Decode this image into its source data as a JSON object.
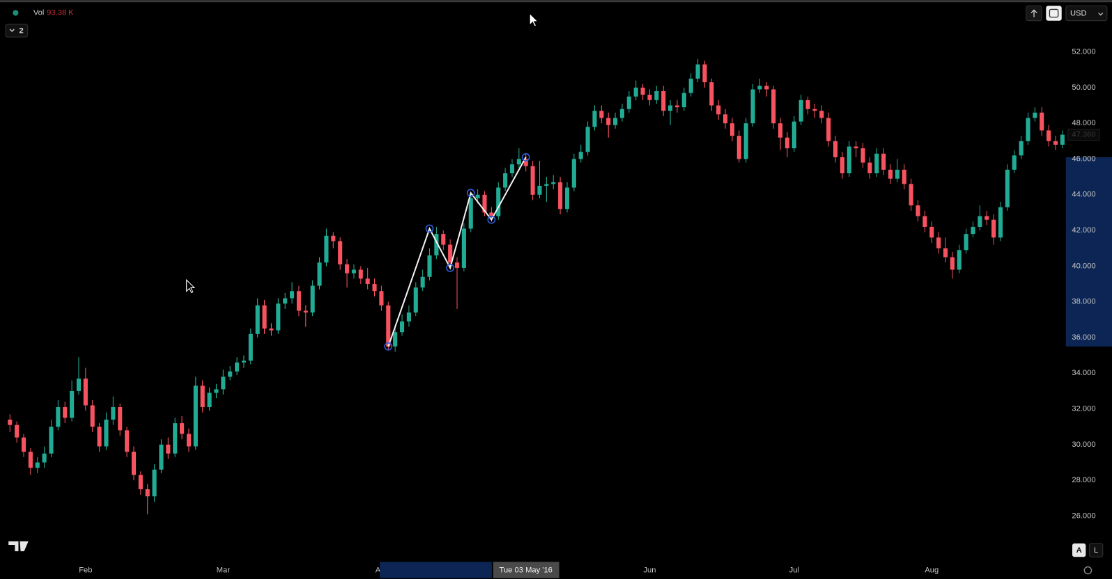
{
  "chart_data": {
    "type": "candlestick",
    "categories": [
      null,
      null,
      null,
      null,
      null,
      null,
      null,
      null,
      null,
      null,
      null,
      "Feb",
      null,
      null,
      null,
      null,
      null,
      null,
      null,
      null,
      null,
      null,
      null,
      null,
      null,
      null,
      null,
      null,
      null,
      null,
      null,
      "Mar",
      null,
      null,
      null,
      null,
      null,
      null,
      null,
      null,
      null,
      null,
      null,
      null,
      null,
      null,
      null,
      null,
      null,
      null,
      null,
      null,
      null,
      null,
      "Apr",
      null,
      null,
      null,
      null,
      null,
      null,
      null,
      null,
      null,
      null,
      null,
      null,
      null,
      null,
      null,
      null,
      null,
      null,
      null,
      null,
      null,
      null,
      null,
      null,
      null,
      null,
      null,
      null,
      null,
      null,
      null,
      null,
      null,
      null,
      null,
      null,
      null,
      null,
      "Jun",
      null,
      null,
      null,
      null,
      null,
      null,
      null,
      null,
      null,
      null,
      null,
      null,
      null,
      null,
      null,
      null,
      null,
      null,
      null,
      null,
      "Jul",
      null,
      null,
      null,
      null,
      null,
      null,
      null,
      null,
      null,
      null,
      null,
      null,
      null,
      null,
      null,
      null,
      null,
      null,
      null,
      "Aug",
      null,
      null,
      null,
      null,
      null,
      null,
      null,
      null,
      null,
      null,
      null,
      null,
      null,
      null,
      null,
      null,
      null
    ],
    "ohlc": [
      [
        31.4,
        31.7,
        30.7,
        31.1
      ],
      [
        31.1,
        31.3,
        30.1,
        30.4
      ],
      [
        30.4,
        30.6,
        29.3,
        29.6
      ],
      [
        29.6,
        29.8,
        28.3,
        28.7
      ],
      [
        28.7,
        29.3,
        28.4,
        29.0
      ],
      [
        29.0,
        29.9,
        28.7,
        29.5
      ],
      [
        29.5,
        31.4,
        29.3,
        31.0
      ],
      [
        31.0,
        32.5,
        30.8,
        32.1
      ],
      [
        32.1,
        32.4,
        31.2,
        31.5
      ],
      [
        31.5,
        33.6,
        31.3,
        33.0
      ],
      [
        33.0,
        34.9,
        32.8,
        33.7
      ],
      [
        33.7,
        34.3,
        31.9,
        32.2
      ],
      [
        32.2,
        32.5,
        30.7,
        31.0
      ],
      [
        31.0,
        31.2,
        29.6,
        29.9
      ],
      [
        29.9,
        31.8,
        29.7,
        31.4
      ],
      [
        31.4,
        32.7,
        31.1,
        32.1
      ],
      [
        32.1,
        32.3,
        30.5,
        30.8
      ],
      [
        30.8,
        31.0,
        29.3,
        29.6
      ],
      [
        29.6,
        29.9,
        28.0,
        28.3
      ],
      [
        28.3,
        28.5,
        27.2,
        27.5
      ],
      [
        27.5,
        27.8,
        26.1,
        27.1
      ],
      [
        27.1,
        28.9,
        26.8,
        28.6
      ],
      [
        28.6,
        30.3,
        28.4,
        30.0
      ],
      [
        30.0,
        30.4,
        29.2,
        29.5
      ],
      [
        29.5,
        31.5,
        29.3,
        31.2
      ],
      [
        31.2,
        31.6,
        30.3,
        30.6
      ],
      [
        30.6,
        30.9,
        29.6,
        29.9
      ],
      [
        29.9,
        33.8,
        29.7,
        33.3
      ],
      [
        33.3,
        33.6,
        31.8,
        32.1
      ],
      [
        32.1,
        33.2,
        31.9,
        32.9
      ],
      [
        32.9,
        33.4,
        32.6,
        33.1
      ],
      [
        33.1,
        34.2,
        32.8,
        33.8
      ],
      [
        33.8,
        34.4,
        33.6,
        34.1
      ],
      [
        34.1,
        34.9,
        33.9,
        34.6
      ],
      [
        34.6,
        35.0,
        34.3,
        34.7
      ],
      [
        34.7,
        36.5,
        34.5,
        36.2
      ],
      [
        36.2,
        38.2,
        36.0,
        37.8
      ],
      [
        37.8,
        38.1,
        36.2,
        36.5
      ],
      [
        36.5,
        36.8,
        36.1,
        36.4
      ],
      [
        36.4,
        38.2,
        36.2,
        37.9
      ],
      [
        37.9,
        38.5,
        37.6,
        38.2
      ],
      [
        38.2,
        39.1,
        37.9,
        38.6
      ],
      [
        38.6,
        38.9,
        37.2,
        37.5
      ],
      [
        37.5,
        37.8,
        36.6,
        37.4
      ],
      [
        37.4,
        39.2,
        37.2,
        38.9
      ],
      [
        38.9,
        40.5,
        38.7,
        40.2
      ],
      [
        40.2,
        42.1,
        40.0,
        41.7
      ],
      [
        41.7,
        41.9,
        41.0,
        41.4
      ],
      [
        41.4,
        41.6,
        39.8,
        40.1
      ],
      [
        40.1,
        40.4,
        38.8,
        39.6
      ],
      [
        39.6,
        40.1,
        39.3,
        39.8
      ],
      [
        39.8,
        40.0,
        39.0,
        39.3
      ],
      [
        39.3,
        39.9,
        38.7,
        39.0
      ],
      [
        39.0,
        39.3,
        38.3,
        38.6
      ],
      [
        38.6,
        38.9,
        37.5,
        37.8
      ],
      [
        37.8,
        38.0,
        35.3,
        35.5
      ],
      [
        35.5,
        36.6,
        35.2,
        36.3
      ],
      [
        36.3,
        37.3,
        36.1,
        36.9
      ],
      [
        36.9,
        37.8,
        36.6,
        37.4
      ],
      [
        37.4,
        39.1,
        37.2,
        38.8
      ],
      [
        38.8,
        39.8,
        38.6,
        39.4
      ],
      [
        39.4,
        41.0,
        39.2,
        40.6
      ],
      [
        40.6,
        42.2,
        40.4,
        41.8
      ],
      [
        41.8,
        42.0,
        40.9,
        41.2
      ],
      [
        41.2,
        41.5,
        39.9,
        40.2
      ],
      [
        40.2,
        40.5,
        37.6,
        39.9
      ],
      [
        39.9,
        42.4,
        39.7,
        42.1
      ],
      [
        42.1,
        44.1,
        41.9,
        43.8
      ],
      [
        43.8,
        44.3,
        43.5,
        44.0
      ],
      [
        44.0,
        44.2,
        42.8,
        43.0
      ],
      [
        43.0,
        43.3,
        42.5,
        42.8
      ],
      [
        42.8,
        44.7,
        42.6,
        44.4
      ],
      [
        44.4,
        45.5,
        44.2,
        45.2
      ],
      [
        45.2,
        46.0,
        45.0,
        45.7
      ],
      [
        45.7,
        46.6,
        45.5,
        46.0
      ],
      [
        46.0,
        46.3,
        45.3,
        45.6
      ],
      [
        45.6,
        45.9,
        43.7,
        44.0
      ],
      [
        44.0,
        45.9,
        43.8,
        44.5
      ],
      [
        44.5,
        45.0,
        43.6,
        44.6
      ],
      [
        44.6,
        45.1,
        44.3,
        44.7
      ],
      [
        44.7,
        45.0,
        42.9,
        43.2
      ],
      [
        43.2,
        44.7,
        43.0,
        44.4
      ],
      [
        44.4,
        46.3,
        44.2,
        46.0
      ],
      [
        46.0,
        46.8,
        45.8,
        46.4
      ],
      [
        46.4,
        48.1,
        46.2,
        47.8
      ],
      [
        47.8,
        49.0,
        47.6,
        48.7
      ],
      [
        48.7,
        49.0,
        48.0,
        48.3
      ],
      [
        48.3,
        48.6,
        47.2,
        47.9
      ],
      [
        47.9,
        48.6,
        47.7,
        48.3
      ],
      [
        48.3,
        49.1,
        48.1,
        48.8
      ],
      [
        48.8,
        49.8,
        48.6,
        49.5
      ],
      [
        49.5,
        50.4,
        49.3,
        50.0
      ],
      [
        50.0,
        50.2,
        49.3,
        49.6
      ],
      [
        49.6,
        49.9,
        49.0,
        49.3
      ],
      [
        49.3,
        50.1,
        49.1,
        49.8
      ],
      [
        49.8,
        50.1,
        48.4,
        48.7
      ],
      [
        48.7,
        49.3,
        47.9,
        49.0
      ],
      [
        49.0,
        49.3,
        48.6,
        48.9
      ],
      [
        48.9,
        50.0,
        48.7,
        49.7
      ],
      [
        49.7,
        50.8,
        49.5,
        50.5
      ],
      [
        50.5,
        51.6,
        50.3,
        51.3
      ],
      [
        51.3,
        51.5,
        50.0,
        50.3
      ],
      [
        50.3,
        50.5,
        48.7,
        49.0
      ],
      [
        49.0,
        49.3,
        48.2,
        48.5
      ],
      [
        48.5,
        48.8,
        47.7,
        48.0
      ],
      [
        48.0,
        48.3,
        47.0,
        47.3
      ],
      [
        47.3,
        47.6,
        45.8,
        46.0
      ],
      [
        46.0,
        48.3,
        45.8,
        48.0
      ],
      [
        48.0,
        50.2,
        47.8,
        49.9
      ],
      [
        49.9,
        50.5,
        49.7,
        50.1
      ],
      [
        50.1,
        50.3,
        49.5,
        49.9
      ],
      [
        49.9,
        50.1,
        47.7,
        48.0
      ],
      [
        48.0,
        48.3,
        46.5,
        47.2
      ],
      [
        47.2,
        47.5,
        46.1,
        46.6
      ],
      [
        46.6,
        48.4,
        46.4,
        48.1
      ],
      [
        48.1,
        49.6,
        47.9,
        49.3
      ],
      [
        49.3,
        49.5,
        48.5,
        48.8
      ],
      [
        48.8,
        49.1,
        48.3,
        48.7
      ],
      [
        48.7,
        49.0,
        48.0,
        48.3
      ],
      [
        48.3,
        48.6,
        46.7,
        47.0
      ],
      [
        47.0,
        47.3,
        45.8,
        46.1
      ],
      [
        46.1,
        46.4,
        44.9,
        45.2
      ],
      [
        45.2,
        47.0,
        45.0,
        46.7
      ],
      [
        46.7,
        47.0,
        46.1,
        46.6
      ],
      [
        46.6,
        46.9,
        45.5,
        45.8
      ],
      [
        45.8,
        46.1,
        44.9,
        45.2
      ],
      [
        45.2,
        46.6,
        45.0,
        46.3
      ],
      [
        46.3,
        46.6,
        45.1,
        45.4
      ],
      [
        45.4,
        45.7,
        44.6,
        44.9
      ],
      [
        44.9,
        46.0,
        44.7,
        45.4
      ],
      [
        45.4,
        45.7,
        44.3,
        44.6
      ],
      [
        44.6,
        44.9,
        43.1,
        43.4
      ],
      [
        43.4,
        43.7,
        42.5,
        42.8
      ],
      [
        42.8,
        43.1,
        41.9,
        42.2
      ],
      [
        42.2,
        42.5,
        41.3,
        41.6
      ],
      [
        41.6,
        41.9,
        40.7,
        41.0
      ],
      [
        41.0,
        41.6,
        40.2,
        40.5
      ],
      [
        40.5,
        40.8,
        39.3,
        39.8
      ],
      [
        39.8,
        41.2,
        39.6,
        40.9
      ],
      [
        40.9,
        42.1,
        40.7,
        41.8
      ],
      [
        41.8,
        42.5,
        41.6,
        42.2
      ],
      [
        42.2,
        43.4,
        42.0,
        42.8
      ],
      [
        42.8,
        43.1,
        42.3,
        42.6
      ],
      [
        42.6,
        42.9,
        41.2,
        41.6
      ],
      [
        41.6,
        43.6,
        41.4,
        43.3
      ],
      [
        43.3,
        45.7,
        43.1,
        45.4
      ],
      [
        45.4,
        46.5,
        45.2,
        46.2
      ],
      [
        46.2,
        47.3,
        46.0,
        47.0
      ],
      [
        47.0,
        48.6,
        46.8,
        48.3
      ],
      [
        48.3,
        48.9,
        48.1,
        48.6
      ],
      [
        48.6,
        48.9,
        47.3,
        47.6
      ],
      [
        47.6,
        47.9,
        46.7,
        47.0
      ],
      [
        47.0,
        47.3,
        46.5,
        46.8
      ],
      [
        46.8,
        47.6,
        46.6,
        47.36
      ]
    ],
    "up_color": "#22ab94",
    "down_color": "#f7525f",
    "ylim": [
      23.55,
      54.9
    ],
    "yticks": [
      {
        "value": 26,
        "label": "26.000"
      },
      {
        "value": 28,
        "label": "28.000"
      },
      {
        "value": 30,
        "label": "30.000"
      },
      {
        "value": 32,
        "label": "32.000"
      },
      {
        "value": 34,
        "label": "34.000"
      },
      {
        "value": 36,
        "label": "36.000"
      },
      {
        "value": 38,
        "label": "38.000"
      },
      {
        "value": 40,
        "label": "40.000"
      },
      {
        "value": 42,
        "label": "42.000"
      },
      {
        "value": 44,
        "label": "44.000"
      },
      {
        "value": 46,
        "label": "46.000"
      },
      {
        "value": 48,
        "label": "48.000"
      },
      {
        "value": 50,
        "label": "50.000"
      },
      {
        "value": 52,
        "label": "52.000"
      }
    ],
    "drawing": {
      "x": [
        55,
        61,
        64,
        67,
        70,
        75
      ],
      "y": [
        35.5,
        42.1,
        39.9,
        44.1,
        42.6,
        46.1
      ]
    },
    "crosshair_label": "Tue 03 May '16",
    "last_price": {
      "value": 47.36,
      "label": "47.360"
    }
  },
  "ui": {
    "volume_label": "Vol",
    "volume_value": "93.38 K",
    "indicator_count": "2",
    "currency": "USD",
    "scale_auto": "A",
    "scale_log": "L"
  }
}
